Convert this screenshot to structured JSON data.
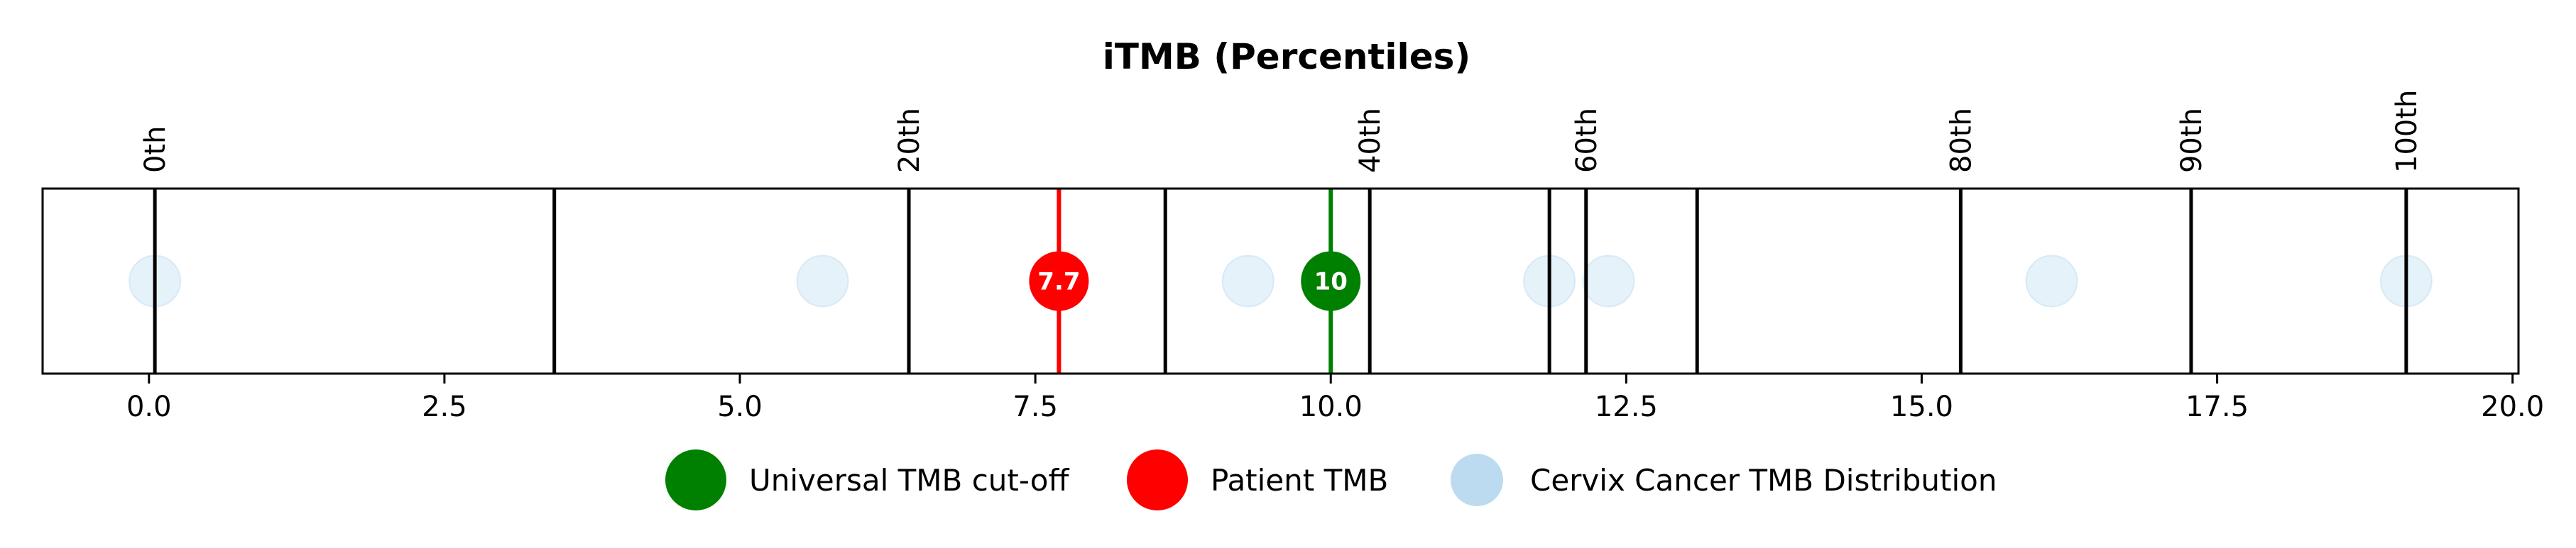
{
  "chart_data": {
    "type": "scatter",
    "title": "iTMB (Percentiles)",
    "xlabel": "",
    "ylabel": "",
    "xlim": [
      -0.9,
      20.05
    ],
    "x_ticks": [
      0.0,
      2.5,
      5.0,
      7.5,
      10.0,
      12.5,
      15.0,
      17.5,
      20.0
    ],
    "x_tick_labels": [
      "0.0",
      "2.5",
      "5.0",
      "7.5",
      "10.0",
      "12.5",
      "15.0",
      "17.5",
      "20.0"
    ],
    "percentile_lines": [
      {
        "x": 0.05,
        "label": "0th"
      },
      {
        "x": 3.43,
        "label": ""
      },
      {
        "x": 6.43,
        "label": "20th"
      },
      {
        "x": 8.6,
        "label": ""
      },
      {
        "x": 10.33,
        "label": "40th"
      },
      {
        "x": 11.85,
        "label": ""
      },
      {
        "x": 12.16,
        "label": "60th"
      },
      {
        "x": 13.1,
        "label": ""
      },
      {
        "x": 15.33,
        "label": "80th"
      },
      {
        "x": 17.28,
        "label": "90th"
      },
      {
        "x": 19.1,
        "label": "100th"
      }
    ],
    "series": [
      {
        "name": "Universal TMB cut-off",
        "color": "#008000",
        "x": [
          10.0
        ],
        "marker_label": "10"
      },
      {
        "name": "Patient TMB",
        "color": "#ff0000",
        "x": [
          7.7
        ],
        "marker_label": "7.7"
      },
      {
        "name": "Cervix Cancer TMB Distribution",
        "color": "#a6cfec",
        "x": [
          0.05,
          5.7,
          9.3,
          11.85,
          12.35,
          16.1,
          19.1
        ]
      }
    ],
    "legend_position": "bottom-center",
    "grid": false
  }
}
